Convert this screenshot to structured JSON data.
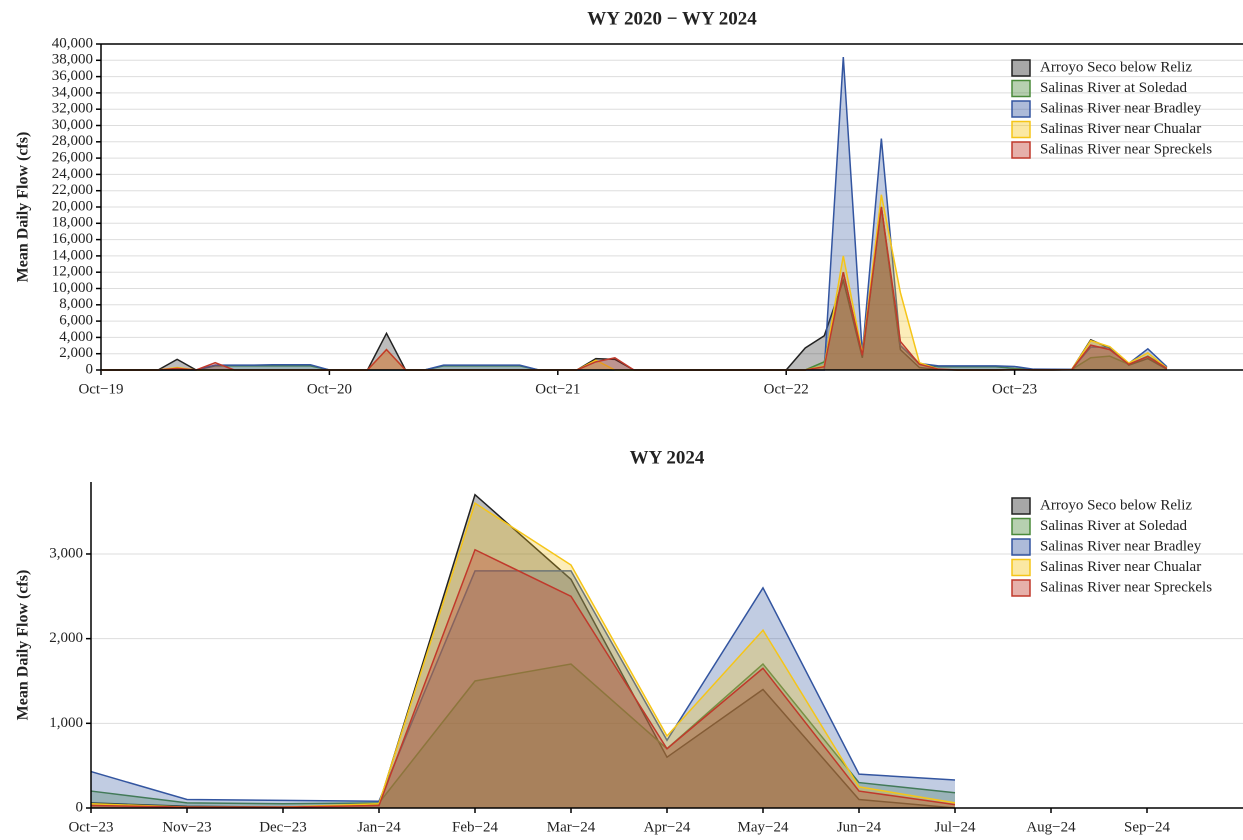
{
  "chart_data": [
    {
      "type": "area",
      "title": "WY 2020 − WY 2024",
      "y_label": "Mean Daily Flow (cfs)",
      "x": [
        "2019-10",
        "2019-11",
        "2019-12",
        "2020-01",
        "2020-02",
        "2020-03",
        "2020-04",
        "2020-05",
        "2020-06",
        "2020-07",
        "2020-08",
        "2020-09",
        "2020-10",
        "2020-11",
        "2020-12",
        "2021-01",
        "2021-02",
        "2021-03",
        "2021-04",
        "2021-05",
        "2021-06",
        "2021-07",
        "2021-08",
        "2021-09",
        "2021-10",
        "2021-11",
        "2021-12",
        "2022-01",
        "2022-02",
        "2022-03",
        "2022-04",
        "2022-05",
        "2022-06",
        "2022-07",
        "2022-08",
        "2022-09",
        "2022-10",
        "2022-11",
        "2022-12",
        "2023-01",
        "2023-02",
        "2023-03",
        "2023-04",
        "2023-05",
        "2023-06",
        "2023-07",
        "2023-08",
        "2023-09",
        "2023-10",
        "2023-11",
        "2023-12",
        "2024-01",
        "2024-02",
        "2024-03",
        "2024-04",
        "2024-05",
        "2024-06"
      ],
      "series": [
        {
          "name": "Arroyo Seco below Reliz",
          "color": "#222222",
          "values": [
            0,
            0,
            0,
            0,
            1300,
            0,
            0,
            0,
            0,
            0,
            0,
            0,
            0,
            0,
            0,
            4500,
            0,
            0,
            0,
            0,
            0,
            0,
            0,
            0,
            0,
            0,
            1400,
            1300,
            0,
            0,
            0,
            0,
            0,
            0,
            0,
            0,
            0,
            2700,
            4200,
            11000,
            1500,
            20000,
            2500,
            300,
            50,
            0,
            0,
            0,
            60,
            20,
            10,
            40,
            3700,
            2700,
            600,
            1400,
            100
          ]
        },
        {
          "name": "Salinas River at Soledad",
          "color": "#4a8a3a",
          "values": [
            0,
            0,
            0,
            0,
            0,
            0,
            500,
            500,
            500,
            500,
            500,
            500,
            0,
            0,
            0,
            0,
            0,
            0,
            500,
            500,
            500,
            500,
            500,
            0,
            0,
            0,
            0,
            0,
            0,
            0,
            0,
            0,
            0,
            0,
            0,
            0,
            0,
            0,
            1000,
            12000,
            1800,
            20000,
            3000,
            700,
            400,
            400,
            400,
            400,
            200,
            60,
            50,
            60,
            1500,
            1700,
            700,
            1700,
            300
          ]
        },
        {
          "name": "Salinas River near Bradley",
          "color": "#3355a0",
          "values": [
            0,
            0,
            0,
            0,
            0,
            0,
            600,
            600,
            600,
            650,
            650,
            650,
            0,
            0,
            0,
            0,
            0,
            0,
            600,
            600,
            600,
            600,
            600,
            0,
            0,
            0,
            0,
            0,
            0,
            0,
            0,
            0,
            0,
            0,
            0,
            0,
            0,
            0,
            0,
            38400,
            2000,
            28400,
            3000,
            800,
            500,
            500,
            500,
            500,
            430,
            100,
            90,
            80,
            2800,
            2800,
            800,
            2600,
            400
          ]
        },
        {
          "name": "Salinas River near Chualar",
          "color": "#f5c518",
          "values": [
            0,
            0,
            0,
            0,
            300,
            0,
            0,
            0,
            0,
            0,
            0,
            0,
            0,
            0,
            0,
            2500,
            0,
            0,
            0,
            0,
            0,
            0,
            0,
            0,
            0,
            0,
            1200,
            0,
            0,
            0,
            0,
            0,
            0,
            0,
            0,
            0,
            0,
            0,
            500,
            14000,
            2000,
            21500,
            9500,
            900,
            100,
            0,
            0,
            0,
            50,
            10,
            10,
            50,
            3600,
            2870,
            850,
            2100,
            250
          ]
        },
        {
          "name": "Salinas River near Spreckels",
          "color": "#c0392b",
          "values": [
            0,
            0,
            0,
            0,
            200,
            0,
            900,
            0,
            0,
            0,
            0,
            0,
            0,
            0,
            0,
            2500,
            0,
            0,
            0,
            0,
            0,
            0,
            0,
            0,
            0,
            0,
            1000,
            1500,
            0,
            0,
            0,
            0,
            0,
            0,
            0,
            0,
            0,
            0,
            400,
            12000,
            1800,
            20000,
            3500,
            700,
            100,
            0,
            0,
            0,
            30,
            10,
            10,
            30,
            3050,
            2500,
            700,
            1650,
            200
          ]
        }
      ],
      "xlim": [
        "2019-10",
        "2024-10"
      ],
      "xticks": [
        {
          "value": "2019-10",
          "label": "Oct−19"
        },
        {
          "value": "2020-10",
          "label": "Oct−20"
        },
        {
          "value": "2021-10",
          "label": "Oct−21"
        },
        {
          "value": "2022-10",
          "label": "Oct−22"
        },
        {
          "value": "2023-10",
          "label": "Oct−23"
        }
      ],
      "ylim": [
        0,
        40000
      ],
      "yticks": [
        0,
        {
          "value": 2000,
          "label": "2,000"
        },
        {
          "value": 4000,
          "label": "4,000"
        },
        {
          "value": 6000,
          "label": "6,000"
        },
        {
          "value": 8000,
          "label": "8,000"
        },
        {
          "value": 10000,
          "label": "10,000"
        },
        {
          "value": 12000,
          "label": "12,000"
        },
        {
          "value": 14000,
          "label": "14,000"
        },
        {
          "value": 16000,
          "label": "16,000"
        },
        {
          "value": 18000,
          "label": "18,000"
        },
        {
          "value": 20000,
          "label": "20,000"
        },
        {
          "value": 22000,
          "label": "22,000"
        },
        {
          "value": 24000,
          "label": "24,000"
        },
        {
          "value": 26000,
          "label": "26,000"
        },
        {
          "value": 28000,
          "label": "28,000"
        },
        {
          "value": 30000,
          "label": "30,000"
        },
        {
          "value": 32000,
          "label": "32,000"
        },
        {
          "value": 34000,
          "label": "34,000"
        },
        {
          "value": 36000,
          "label": "36,000"
        },
        {
          "value": 38000,
          "label": "38,000"
        },
        {
          "value": 40000,
          "label": "40,000"
        }
      ],
      "grid": true,
      "legend": "upper right"
    },
    {
      "type": "area",
      "title": "WY 2024",
      "y_label": "Mean Daily Flow (cfs)",
      "x": [
        "2023-10",
        "2023-11",
        "2023-12",
        "2024-01",
        "2024-02",
        "2024-03",
        "2024-04",
        "2024-05",
        "2024-06",
        "2024-07"
      ],
      "series": [
        {
          "name": "Arroyo Seco below Reliz",
          "color": "#222222",
          "values": [
            60,
            20,
            10,
            40,
            3700,
            2700,
            600,
            1400,
            100,
            0
          ]
        },
        {
          "name": "Salinas River at Soledad",
          "color": "#4a8a3a",
          "values": [
            200,
            60,
            50,
            60,
            1500,
            1700,
            700,
            1700,
            300,
            180
          ]
        },
        {
          "name": "Salinas River near Bradley",
          "color": "#3355a0",
          "values": [
            430,
            100,
            90,
            80,
            2800,
            2800,
            800,
            2600,
            400,
            330
          ]
        },
        {
          "name": "Salinas River near Chualar",
          "color": "#f5c518",
          "values": [
            50,
            10,
            10,
            50,
            3600,
            2870,
            850,
            2100,
            250,
            60
          ]
        },
        {
          "name": "Salinas River near Spreckels",
          "color": "#c0392b",
          "values": [
            30,
            10,
            10,
            30,
            3050,
            2500,
            700,
            1650,
            200,
            40
          ]
        }
      ],
      "xlim": [
        "2023-10",
        "2024-10"
      ],
      "xticks": [
        {
          "value": "2023-10",
          "label": "Oct−23"
        },
        {
          "value": "2023-11",
          "label": "Nov−23"
        },
        {
          "value": "2023-12",
          "label": "Dec−23"
        },
        {
          "value": "2024-01",
          "label": "Jan−24"
        },
        {
          "value": "2024-02",
          "label": "Feb−24"
        },
        {
          "value": "2024-03",
          "label": "Mar−24"
        },
        {
          "value": "2024-04",
          "label": "Apr−24"
        },
        {
          "value": "2024-05",
          "label": "May−24"
        },
        {
          "value": "2024-06",
          "label": "Jun−24"
        },
        {
          "value": "2024-07",
          "label": "Jul−24"
        },
        {
          "value": "2024-08",
          "label": "Aug−24"
        },
        {
          "value": "2024-09",
          "label": "Sep−24"
        }
      ],
      "ylim": [
        0,
        3850
      ],
      "yticks": [
        0,
        {
          "value": 1000,
          "label": "1,000"
        },
        {
          "value": 2000,
          "label": "2,000"
        },
        {
          "value": 3000,
          "label": "3,000"
        }
      ],
      "grid": true,
      "legend": "upper right"
    }
  ]
}
